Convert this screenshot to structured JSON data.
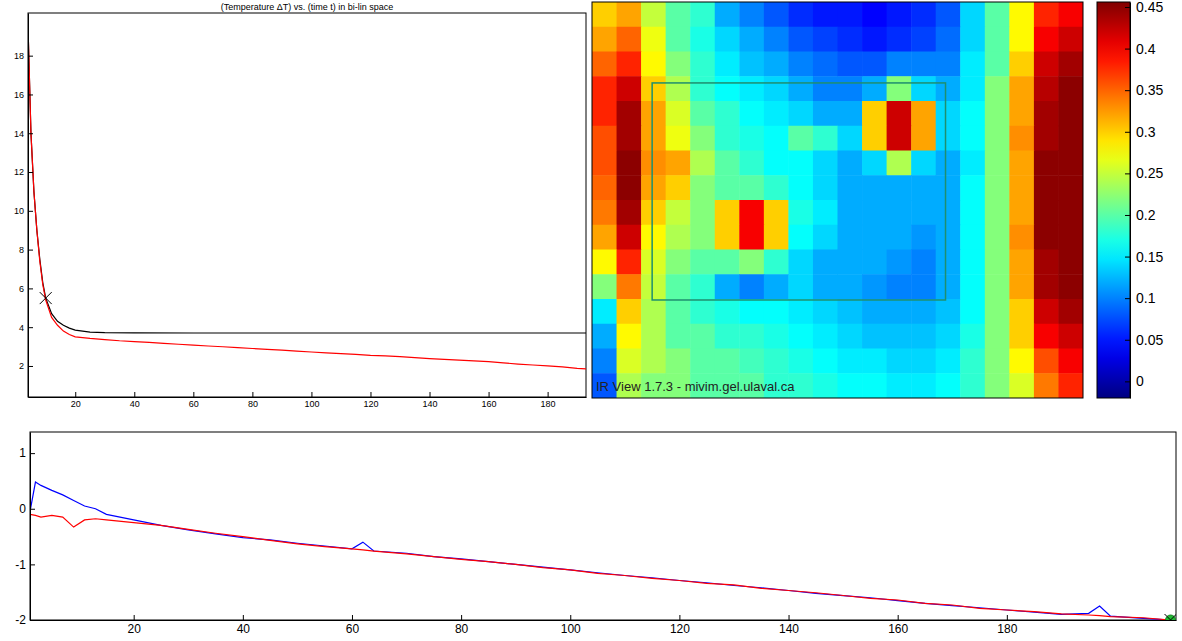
{
  "chart_data": [
    {
      "type": "line",
      "title": "(Temperature ΔT) vs. (time t) in bi-lin space",
      "xlim": [
        4,
        193
      ],
      "xticks": [
        20,
        40,
        60,
        80,
        100,
        120,
        140,
        160,
        180
      ],
      "ylim": [
        0.4,
        20.2
      ],
      "yticks": [
        2,
        4,
        6,
        8,
        10,
        12,
        14,
        16,
        18
      ],
      "series": [
        {
          "color": "#000000",
          "x": [
            4,
            5,
            6,
            7,
            8,
            9,
            10,
            12,
            14,
            16,
            18,
            20,
            25,
            30,
            40,
            60,
            80,
            100,
            120,
            140,
            160,
            180,
            193
          ],
          "values": [
            19.5,
            14,
            11,
            9,
            7.5,
            6.3,
            5.5,
            4.7,
            4.3,
            4.1,
            3.95,
            3.85,
            3.75,
            3.72,
            3.71,
            3.7,
            3.7,
            3.7,
            3.7,
            3.7,
            3.7,
            3.7,
            3.7
          ]
        },
        {
          "color": "#ff0000",
          "x": [
            4,
            5,
            6,
            7,
            8,
            9,
            10,
            12,
            14,
            16,
            18,
            20,
            25,
            30,
            35,
            40,
            45,
            50,
            55,
            60,
            65,
            70,
            75,
            80,
            85,
            90,
            95,
            100,
            105,
            110,
            115,
            120,
            125,
            130,
            135,
            140,
            145,
            150,
            155,
            160,
            165,
            170,
            175,
            180,
            185,
            190,
            193
          ],
          "values": [
            19.5,
            14,
            11,
            9,
            7.4,
            6.2,
            5.4,
            4.5,
            4.1,
            3.8,
            3.62,
            3.5,
            3.42,
            3.36,
            3.3,
            3.26,
            3.22,
            3.17,
            3.12,
            3.07,
            3.03,
            2.99,
            2.95,
            2.9,
            2.86,
            2.82,
            2.77,
            2.72,
            2.68,
            2.64,
            2.6,
            2.55,
            2.52,
            2.48,
            2.43,
            2.38,
            2.34,
            2.3,
            2.26,
            2.22,
            2.16,
            2.1,
            2.05,
            2.0,
            1.95,
            1.88,
            1.85
          ]
        }
      ],
      "markers": [
        {
          "x": 10,
          "y": 5.5,
          "marker": "x",
          "color": "#000000"
        }
      ]
    },
    {
      "type": "heatmap",
      "tick_labels": false,
      "xlim": [
        0,
        20
      ],
      "ylim": [
        0,
        16
      ],
      "cells": [
        [
          0.3,
          0.32,
          0.25,
          0.2,
          0.18,
          0.12,
          0.1,
          0.08,
          0.06,
          0.05,
          0.05,
          0.04,
          0.05,
          0.06,
          0.08,
          0.14,
          0.2,
          0.28,
          0.38,
          0.4
        ],
        [
          0.32,
          0.35,
          0.27,
          0.2,
          0.17,
          0.14,
          0.12,
          0.1,
          0.08,
          0.07,
          0.06,
          0.05,
          0.06,
          0.07,
          0.09,
          0.14,
          0.2,
          0.28,
          0.4,
          0.42
        ],
        [
          0.35,
          0.38,
          0.28,
          0.22,
          0.18,
          0.15,
          0.13,
          0.12,
          0.1,
          0.09,
          0.08,
          0.08,
          0.1,
          0.1,
          0.1,
          0.15,
          0.2,
          0.3,
          0.42,
          0.44
        ],
        [
          0.38,
          0.42,
          0.3,
          0.24,
          0.18,
          0.16,
          0.15,
          0.14,
          0.12,
          0.1,
          0.1,
          0.12,
          0.22,
          0.14,
          0.12,
          0.15,
          0.22,
          0.32,
          0.43,
          0.45
        ],
        [
          0.38,
          0.44,
          0.32,
          0.26,
          0.2,
          0.18,
          0.16,
          0.15,
          0.14,
          0.12,
          0.12,
          0.3,
          0.42,
          0.32,
          0.14,
          0.16,
          0.22,
          0.32,
          0.44,
          0.45
        ],
        [
          0.36,
          0.44,
          0.32,
          0.27,
          0.22,
          0.18,
          0.17,
          0.16,
          0.2,
          0.18,
          0.14,
          0.3,
          0.42,
          0.32,
          0.14,
          0.16,
          0.22,
          0.33,
          0.44,
          0.45
        ],
        [
          0.36,
          0.45,
          0.33,
          0.32,
          0.24,
          0.2,
          0.18,
          0.16,
          0.16,
          0.14,
          0.12,
          0.14,
          0.24,
          0.14,
          0.12,
          0.15,
          0.22,
          0.32,
          0.45,
          0.45
        ],
        [
          0.35,
          0.45,
          0.32,
          0.3,
          0.22,
          0.2,
          0.2,
          0.18,
          0.16,
          0.14,
          0.12,
          0.12,
          0.12,
          0.12,
          0.12,
          0.16,
          0.22,
          0.32,
          0.45,
          0.45
        ],
        [
          0.34,
          0.44,
          0.3,
          0.25,
          0.22,
          0.3,
          0.4,
          0.3,
          0.17,
          0.15,
          0.12,
          0.12,
          0.12,
          0.12,
          0.12,
          0.16,
          0.22,
          0.32,
          0.45,
          0.45
        ],
        [
          0.32,
          0.42,
          0.28,
          0.24,
          0.22,
          0.3,
          0.4,
          0.3,
          0.16,
          0.14,
          0.12,
          0.12,
          0.12,
          0.11,
          0.12,
          0.16,
          0.22,
          0.33,
          0.45,
          0.45
        ],
        [
          0.28,
          0.38,
          0.26,
          0.22,
          0.2,
          0.2,
          0.22,
          0.18,
          0.14,
          0.12,
          0.12,
          0.12,
          0.11,
          0.1,
          0.12,
          0.16,
          0.22,
          0.32,
          0.44,
          0.45
        ],
        [
          0.22,
          0.34,
          0.25,
          0.2,
          0.18,
          0.12,
          0.1,
          0.12,
          0.14,
          0.12,
          0.12,
          0.11,
          0.1,
          0.1,
          0.12,
          0.16,
          0.22,
          0.32,
          0.44,
          0.45
        ],
        [
          0.15,
          0.3,
          0.24,
          0.2,
          0.18,
          0.17,
          0.16,
          0.16,
          0.15,
          0.14,
          0.13,
          0.12,
          0.12,
          0.12,
          0.13,
          0.16,
          0.22,
          0.3,
          0.42,
          0.44
        ],
        [
          0.12,
          0.28,
          0.24,
          0.2,
          0.2,
          0.18,
          0.18,
          0.17,
          0.16,
          0.15,
          0.14,
          0.13,
          0.13,
          0.13,
          0.14,
          0.17,
          0.22,
          0.3,
          0.4,
          0.42
        ],
        [
          0.1,
          0.26,
          0.24,
          0.22,
          0.2,
          0.2,
          0.19,
          0.18,
          0.17,
          0.16,
          0.15,
          0.15,
          0.14,
          0.14,
          0.15,
          0.18,
          0.22,
          0.28,
          0.36,
          0.4
        ],
        [
          0.08,
          0.24,
          0.22,
          0.22,
          0.2,
          0.2,
          0.2,
          0.18,
          0.18,
          0.17,
          0.16,
          0.16,
          0.15,
          0.15,
          0.16,
          0.18,
          0.22,
          0.26,
          0.34,
          0.38
        ]
      ],
      "colorbar": {
        "range": [
          -0.02,
          0.456
        ],
        "ticks": [
          0,
          0.05,
          0.1,
          0.15,
          0.2,
          0.25,
          0.3,
          0.35,
          0.4,
          0.45
        ]
      },
      "region": {
        "x": [
          2.45,
          14.4
        ],
        "y": [
          3.27,
          12.04
        ],
        "color": "#1f8f6f"
      },
      "annotations": [
        "IR View 1.7.3 - mivim.gel.ulaval.ca"
      ]
    },
    {
      "type": "line",
      "xlim": [
        1,
        211
      ],
      "xticks": [
        20,
        40,
        60,
        80,
        100,
        120,
        140,
        160,
        180
      ],
      "ylim": [
        -2,
        1.38
      ],
      "yticks": [
        -2,
        -1,
        0,
        1
      ],
      "series": [
        {
          "color": "#0000ff",
          "x": [
            1,
            2,
            3,
            5,
            7,
            9,
            11,
            13,
            15,
            20,
            25,
            30,
            35,
            40,
            45,
            50,
            55,
            60,
            62,
            64,
            70,
            75,
            80,
            85,
            90,
            95,
            100,
            105,
            110,
            115,
            120,
            125,
            130,
            135,
            140,
            145,
            150,
            155,
            160,
            165,
            170,
            175,
            180,
            185,
            190,
            195,
            197,
            199,
            205,
            210
          ],
          "values": [
            -0.05,
            0.48,
            0.42,
            0.33,
            0.25,
            0.15,
            0.05,
            0.0,
            -0.1,
            -0.2,
            -0.3,
            -0.38,
            -0.45,
            -0.52,
            -0.56,
            -0.62,
            -0.67,
            -0.72,
            -0.6,
            -0.76,
            -0.8,
            -0.86,
            -0.9,
            -0.95,
            -1.0,
            -1.05,
            -1.1,
            -1.15,
            -1.2,
            -1.24,
            -1.29,
            -1.33,
            -1.38,
            -1.42,
            -1.47,
            -1.52,
            -1.56,
            -1.6,
            -1.65,
            -1.7,
            -1.74,
            -1.78,
            -1.82,
            -1.86,
            -1.9,
            -1.88,
            -1.75,
            -1.93,
            -1.97,
            -2.0
          ]
        },
        {
          "color": "#ff0000",
          "x": [
            1,
            2,
            3,
            5,
            7,
            9,
            11,
            13,
            15,
            20,
            25,
            30,
            35,
            40,
            45,
            50,
            55,
            60,
            62,
            64,
            70,
            75,
            80,
            85,
            90,
            95,
            100,
            105,
            110,
            115,
            120,
            125,
            130,
            135,
            140,
            145,
            150,
            155,
            160,
            165,
            170,
            175,
            180,
            185,
            190,
            195,
            197,
            199,
            205,
            210
          ],
          "values": [
            -0.1,
            -0.12,
            -0.15,
            -0.12,
            -0.15,
            -0.33,
            -0.2,
            -0.18,
            -0.2,
            -0.25,
            -0.3,
            -0.37,
            -0.44,
            -0.5,
            -0.57,
            -0.63,
            -0.68,
            -0.72,
            -0.74,
            -0.76,
            -0.81,
            -0.86,
            -0.91,
            -0.95,
            -1.0,
            -1.06,
            -1.1,
            -1.16,
            -1.2,
            -1.25,
            -1.29,
            -1.34,
            -1.37,
            -1.43,
            -1.47,
            -1.51,
            -1.56,
            -1.61,
            -1.64,
            -1.7,
            -1.73,
            -1.79,
            -1.82,
            -1.85,
            -1.89,
            -1.91,
            -1.92,
            -1.94,
            -1.96,
            -2.0
          ]
        }
      ],
      "markers": [
        {
          "x": 210,
          "y": -2,
          "marker": "circle",
          "color": "#22bb33"
        },
        {
          "x": 210,
          "y": -2,
          "marker": "x",
          "color": "#000000"
        }
      ]
    }
  ]
}
